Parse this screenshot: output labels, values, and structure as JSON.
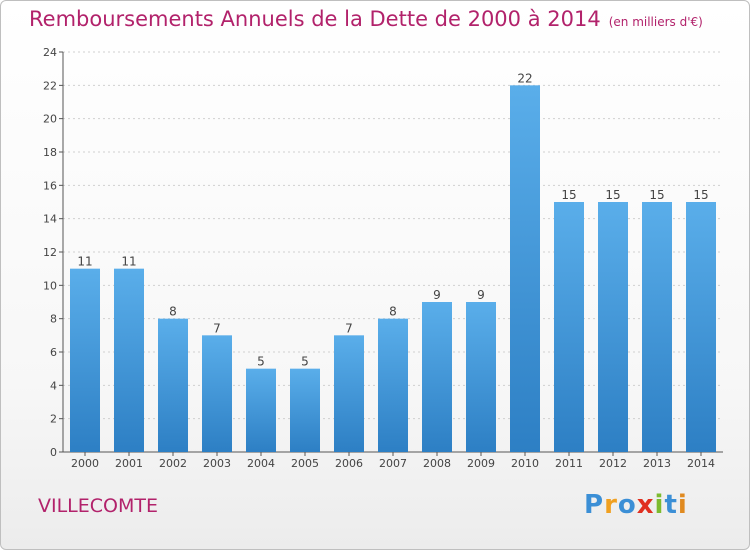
{
  "title": "Remboursements Annuels de la Dette de 2000 à 2014",
  "subtitle": "(en milliers d'€)",
  "commune": "VILLECOMTE",
  "logo": {
    "text": "Proxiti",
    "letters": [
      {
        "ch": "P",
        "color": "#3b8fd6"
      },
      {
        "ch": "r",
        "color": "#f0a020"
      },
      {
        "ch": "o",
        "color": "#3b8fd6"
      },
      {
        "ch": "x",
        "color": "#e03020"
      },
      {
        "ch": "i",
        "color": "#7dbb2f"
      },
      {
        "ch": "t",
        "color": "#3b8fd6"
      },
      {
        "ch": "i",
        "color": "#e08a20"
      }
    ]
  },
  "colors": {
    "title": "#b2226b",
    "bar_light": "#5aaeea",
    "bar_dark": "#2d7fc4",
    "axis": "#555555",
    "grid": "#d0d0d0"
  },
  "chart_data": {
    "type": "bar",
    "categories": [
      "2000",
      "2001",
      "2002",
      "2003",
      "2004",
      "2005",
      "2006",
      "2007",
      "2008",
      "2009",
      "2010",
      "2011",
      "2012",
      "2013",
      "2014"
    ],
    "values": [
      11,
      11,
      8,
      7,
      5,
      5,
      7,
      8,
      9,
      9,
      22,
      15,
      15,
      15,
      15
    ],
    "ylim": [
      0,
      24
    ],
    "yticks": [
      0,
      2,
      4,
      6,
      8,
      10,
      12,
      14,
      16,
      18,
      20,
      22,
      24
    ],
    "grid": true,
    "title": "Remboursements Annuels de la Dette de 2000 à 2014",
    "xlabel": "",
    "ylabel": ""
  }
}
